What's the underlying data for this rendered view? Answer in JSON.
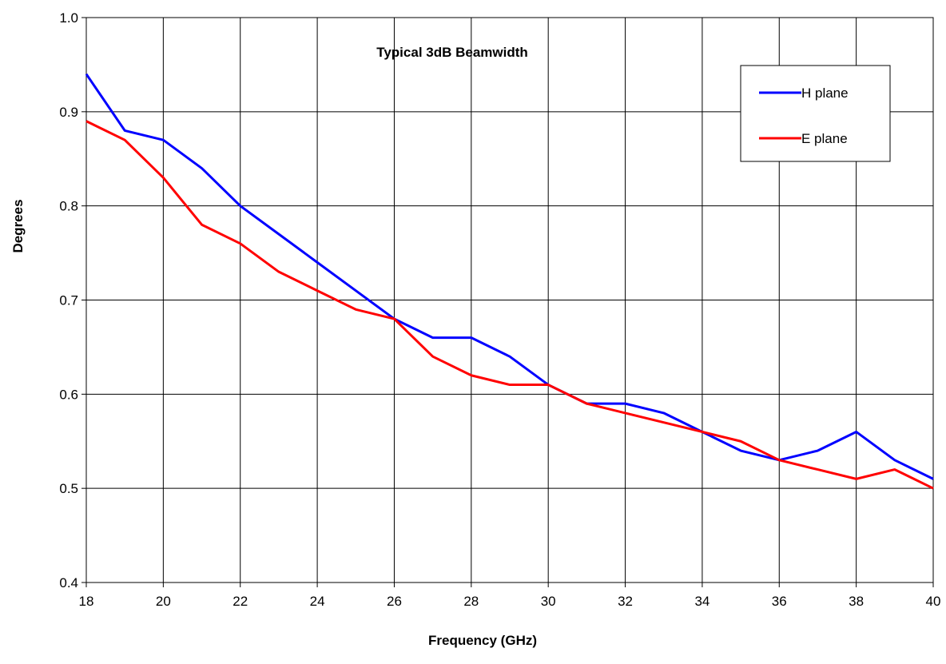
{
  "chart_data": {
    "type": "line",
    "title": "Typical 3dB Beamwidth",
    "xlabel": "Frequency (GHz)",
    "ylabel": "Degrees",
    "xlim": [
      18,
      40
    ],
    "ylim": [
      0.4,
      1.0
    ],
    "x_ticks": [
      "18",
      "20",
      "22",
      "24",
      "26",
      "28",
      "30",
      "32",
      "34",
      "36",
      "38",
      "40"
    ],
    "y_ticks": [
      "0.4",
      "0.5",
      "0.6",
      "0.7",
      "0.8",
      "0.9",
      "1.0"
    ],
    "grid": true,
    "legend_position": "top-right",
    "x": [
      18,
      19,
      20,
      21,
      22,
      23,
      24,
      25,
      26,
      27,
      28,
      29,
      30,
      31,
      32,
      33,
      34,
      35,
      36,
      37,
      38,
      39,
      40
    ],
    "series": [
      {
        "name": "H plane",
        "color": "#0000ff",
        "values": [
          0.94,
          0.88,
          0.87,
          0.84,
          0.8,
          0.77,
          0.74,
          0.71,
          0.68,
          0.66,
          0.66,
          0.64,
          0.61,
          0.59,
          0.59,
          0.58,
          0.56,
          0.54,
          0.53,
          0.54,
          0.56,
          0.53,
          0.51
        ]
      },
      {
        "name": "E plane",
        "color": "#ff0000",
        "values": [
          0.89,
          0.87,
          0.83,
          0.78,
          0.76,
          0.73,
          0.71,
          0.69,
          0.68,
          0.64,
          0.62,
          0.61,
          0.61,
          0.59,
          0.58,
          0.57,
          0.56,
          0.55,
          0.53,
          0.52,
          0.51,
          0.52,
          0.5
        ]
      }
    ]
  }
}
